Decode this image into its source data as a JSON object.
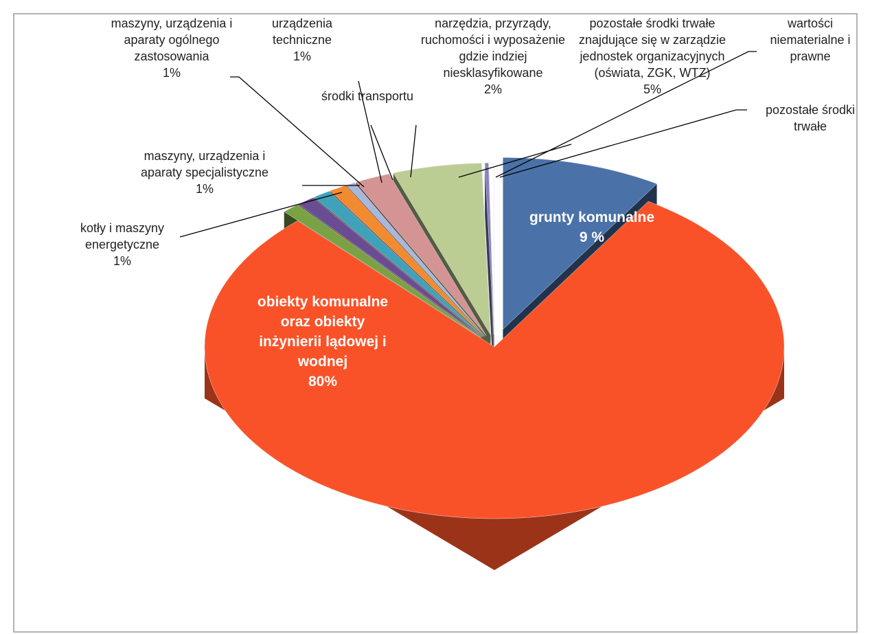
{
  "chart_data": {
    "type": "pie",
    "categories": [
      "grunty komunalne",
      "obiekty komunalne oraz obiekty inżynierii lądowej i wodnej",
      "kotły i maszyny energetyczne",
      "maszyny, urządzenia i aparaty ogólnego zastosowania",
      "maszyny, urządzenia i aparaty specjalistyczne",
      "urządzenia techniczne",
      "środki transportu",
      "narzędzia, przyrządy, ruchomości i wyposażenie gdzie indziej niesklasyfikowane",
      "pozostałe środki trwałe znajdujące się w zarządzie jednostek organizacyjnych (oświata, ZGK, WTZ)",
      "wartości niematerialne i prawne",
      "pozostałe środki trwałe"
    ],
    "values": [
      9,
      80,
      1,
      1,
      1,
      1,
      0.5,
      2,
      5,
      0.2,
      0.3
    ],
    "value_labels": [
      "9 %",
      "80%",
      "1%",
      "1%",
      "1%",
      "1%",
      null,
      "2%",
      "5%",
      null,
      null
    ],
    "colors": [
      "#4a72a8",
      "#fa5228",
      "#7aa244",
      "#6a4c92",
      "#3fa2ba",
      "#f28a30",
      "#a8b8da",
      "#d49494",
      "#bccd94",
      "#8482c4",
      "#ffffff"
    ]
  }
}
